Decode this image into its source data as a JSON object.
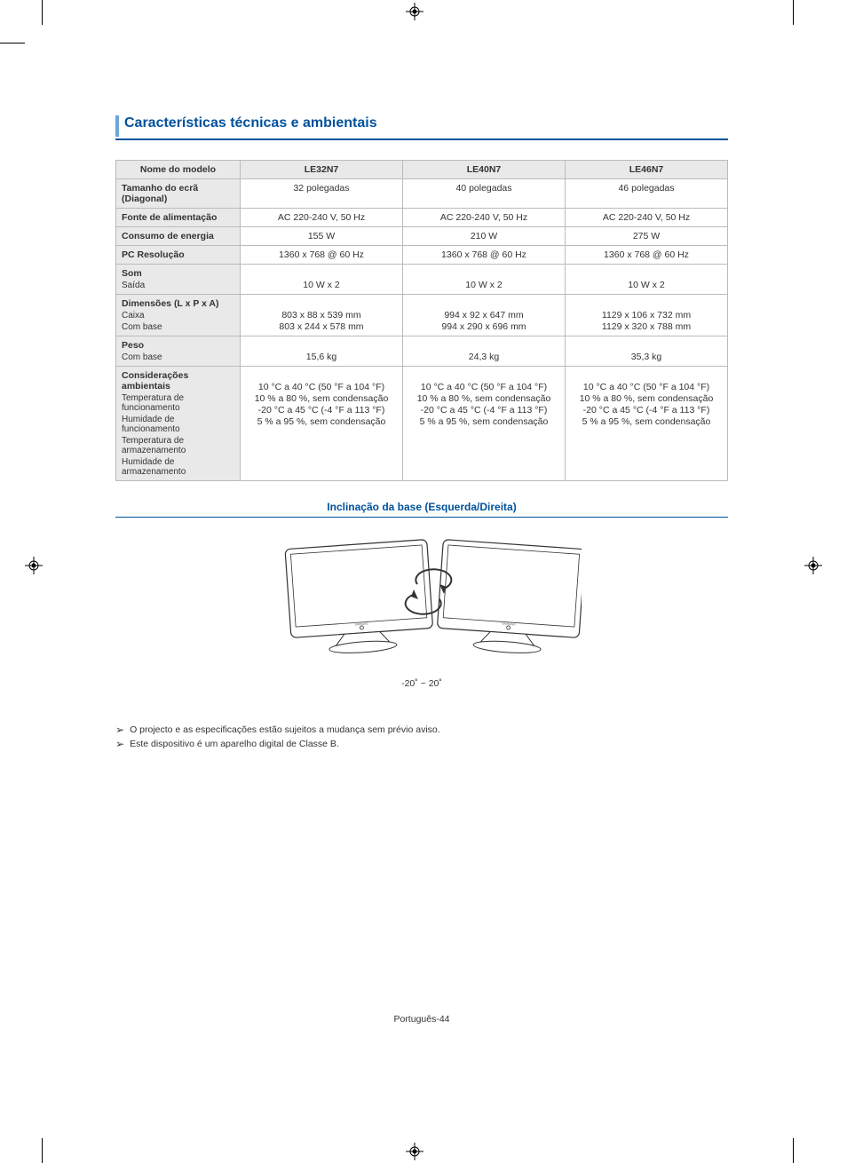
{
  "heading": "Características técnicas e ambientais",
  "table": {
    "header": [
      "Nome do modelo",
      "LE32N7",
      "LE40N7",
      "LE46N7"
    ],
    "rows": [
      {
        "label": "Tamanho do ecrã (Diagonal)",
        "vals": [
          "32 polegadas",
          "40 polegadas",
          "46 polegadas"
        ]
      },
      {
        "label": "Fonte de alimentação",
        "vals": [
          "AC 220-240 V, 50 Hz",
          "AC 220-240 V, 50 Hz",
          "AC 220-240 V, 50 Hz"
        ]
      },
      {
        "label": "Consumo de energia",
        "vals": [
          "155 W",
          "210 W",
          "275 W"
        ]
      },
      {
        "label": "PC Resolução",
        "vals": [
          "1360 x 768 @ 60 Hz",
          "1360 x 768 @ 60 Hz",
          "1360 x 768 @ 60 Hz"
        ]
      },
      {
        "label": "Som",
        "sublabels": [
          "Saída"
        ],
        "vals": [
          [
            "",
            "10 W x 2"
          ],
          [
            "",
            "10 W x 2"
          ],
          [
            "",
            "10 W x 2"
          ]
        ]
      },
      {
        "label": "Dimensões (L x P x A)",
        "sublabels": [
          "Caixa",
          "Com base"
        ],
        "vals": [
          [
            "",
            "803 x 88 x 539 mm",
            "803 x 244 x 578 mm"
          ],
          [
            "",
            "994 x 92 x 647 mm",
            "994 x 290 x 696 mm"
          ],
          [
            "",
            "1129 x 106 x 732 mm",
            "1129 x 320 x 788 mm"
          ]
        ]
      },
      {
        "label": "Peso",
        "sublabels": [
          "Com base"
        ],
        "vals": [
          [
            "",
            "15,6 kg"
          ],
          [
            "",
            "24,3 kg"
          ],
          [
            "",
            "35,3 kg"
          ]
        ]
      },
      {
        "label": "Considerações ambientais",
        "sublabels": [
          "Temperatura de funcionamento",
          "Humidade de funcionamento",
          "Temperatura de armazenamento",
          "Humidade de armazenamento"
        ],
        "vals": [
          [
            "",
            "10 °C a 40 °C (50 °F a 104 °F)",
            "10 % a 80 %, sem condensação",
            "-20 °C a 45 °C (-4 °F a 113 °F)",
            "5 % a 95 %, sem condensação"
          ],
          [
            "",
            "10 °C a 40 °C (50 °F a 104 °F)",
            "10 % a 80 %, sem condensação",
            "-20 °C a 45 °C (-4 °F a 113 °F)",
            "5 % a 95 %, sem condensação"
          ],
          [
            "",
            "10 °C a 40 °C (50 °F a 104 °F)",
            "10 % a 80 %, sem condensação",
            "-20 °C a 45 °C (-4 °F a 113 °F)",
            "5 % a 95 %, sem condensação"
          ]
        ]
      }
    ]
  },
  "subheading": "Inclinação da base (Esquerda/Direita)",
  "diagram_caption": "-20˚ ~ 20˚",
  "notes": [
    "O projecto e as especificações estão sujeitos a mudança sem prévio aviso.",
    "Este dispositivo é um aparelho digital de Classe B."
  ],
  "footer": "Português-44",
  "colors": {
    "heading": "#00529c",
    "heading_bar": "#6ca5d9",
    "table_header_bg": "#e9e9e9",
    "border": "#bbbbbb"
  }
}
